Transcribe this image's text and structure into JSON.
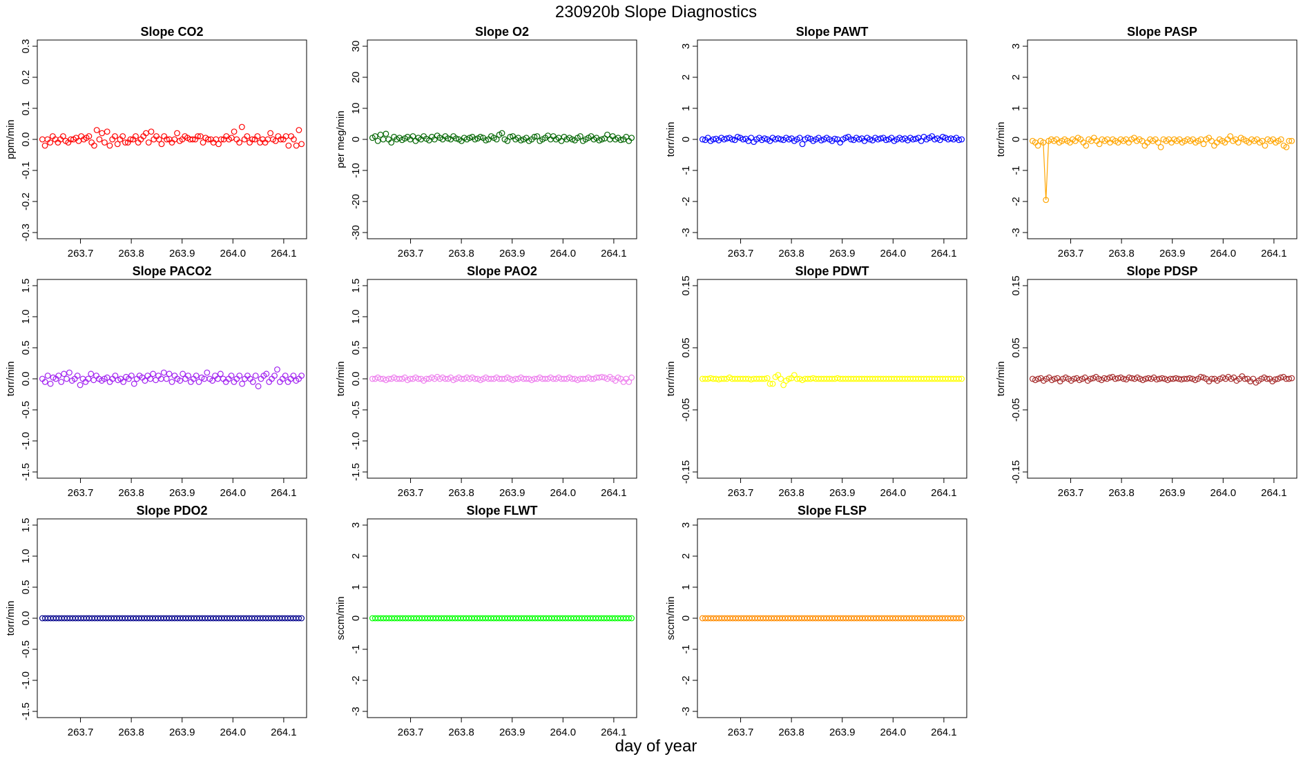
{
  "title": "230920b   Slope Diagnostics",
  "xlabel": "day of year",
  "chart_data": [
    {
      "type": "scatter",
      "title": "Slope CO2",
      "ylabel": "ppm/min",
      "color": "#ff0000",
      "ylim": [
        -0.32,
        0.32
      ],
      "yticks": [
        "-0.3",
        "-0.2",
        "-0.1",
        "0.0",
        "0.1",
        "0.2",
        "0.3"
      ],
      "ytick_values": [
        -0.3,
        -0.2,
        -0.1,
        0,
        0.1,
        0.2,
        0.3
      ],
      "xlim": [
        263.615,
        264.145
      ],
      "xticks": [
        "263.7",
        "263.8",
        "263.9",
        "264.0",
        "264.1"
      ],
      "xtick_values": [
        263.7,
        263.8,
        263.9,
        264.0,
        264.1
      ],
      "x_start": 263.625,
      "x_end": 264.135,
      "y": [
        0.0,
        -0.02,
        0.0,
        -0.01,
        0.01,
        0.0,
        -0.01,
        0.0,
        0.01,
        -0.005,
        -0.01,
        0.0,
        0.0,
        0.005,
        -0.005,
        0.01,
        0.0,
        0.005,
        0.01,
        -0.01,
        -0.02,
        0.03,
        0.0,
        0.02,
        -0.01,
        0.025,
        -0.02,
        0.0,
        0.01,
        -0.015,
        0.0,
        0.01,
        -0.01,
        -0.01,
        0.0,
        0.0,
        0.01,
        -0.01,
        0.0,
        0.01,
        0.02,
        -0.01,
        0.025,
        0.0,
        0.01,
        0.0,
        -0.015,
        0.01,
        0.0,
        0.0,
        -0.01,
        0.0,
        0.02,
        -0.005,
        0.0,
        0.01,
        0.005,
        0.0,
        0.0,
        0.0,
        0.01,
        0.01,
        -0.01,
        0.005,
        0.0,
        0.0,
        -0.01,
        0.0,
        -0.015,
        0.0,
        0.0,
        0.01,
        0.0,
        0.005,
        0.025,
        0.0,
        -0.01,
        0.04,
        0.0,
        0.01,
        -0.01,
        0.0,
        0.0,
        0.01,
        -0.01,
        0.0,
        -0.01,
        0.0,
        0.02,
        0.0,
        -0.005,
        0.01,
        0.0,
        0.0,
        0.01,
        -0.02,
        0.01,
        0.0,
        -0.02,
        0.03,
        -0.015
      ]
    },
    {
      "type": "scatter",
      "title": "Slope O2",
      "ylabel": "per meg/min",
      "color": "#006400",
      "ylim": [
        -32,
        32
      ],
      "yticks": [
        "-30",
        "-20",
        "-10",
        "0",
        "10",
        "20",
        "30"
      ],
      "ytick_values": [
        -30,
        -20,
        -10,
        0,
        10,
        20,
        30
      ],
      "xlim": [
        263.615,
        264.145
      ],
      "xticks": [
        "263.7",
        "263.8",
        "263.9",
        "264.0",
        "264.1"
      ],
      "xtick_values": [
        263.7,
        263.8,
        263.9,
        264.0,
        264.1
      ],
      "x_start": 263.625,
      "x_end": 264.135,
      "y": [
        0.5,
        1.0,
        -0.5,
        1.5,
        0.0,
        1.8,
        0.0,
        -1.0,
        0.8,
        0.0,
        0.5,
        -0.2,
        0.3,
        0.8,
        0.0,
        1.0,
        -0.5,
        0.5,
        0.0,
        1.0,
        0.2,
        -0.3,
        0.8,
        0.0,
        1.2,
        0.5,
        0.0,
        1.0,
        0.3,
        0.0,
        1.0,
        0.3,
        0.0,
        -0.5,
        0.5,
        0.0,
        0.5,
        0.8,
        0.0,
        0.3,
        0.8,
        0.5,
        -0.3,
        0.0,
        1.0,
        0.5,
        0.0,
        1.5,
        2.0,
        0.0,
        -0.5,
        0.8,
        1.0,
        0.0,
        0.5,
        -0.3,
        0.0,
        0.5,
        -0.5,
        0.0,
        0.8,
        1.0,
        -0.5,
        0.0,
        0.5,
        1.2,
        0.0,
        1.0,
        0.0,
        0.5,
        -0.5,
        0.8,
        0.0,
        0.5,
        0.0,
        -0.3,
        0.5,
        1.0,
        -0.5,
        0.0,
        0.5,
        1.0,
        0.0,
        0.5,
        -0.3,
        0.0,
        0.3,
        1.5,
        0.0,
        1.0,
        0.0,
        0.5,
        -0.2,
        0.0,
        0.8,
        -0.5,
        0.5
      ]
    },
    {
      "type": "scatter",
      "title": "Slope PAWT",
      "ylabel": "torr/min",
      "color": "#0000ff",
      "ylim": [
        -3.2,
        3.2
      ],
      "yticks": [
        "-3",
        "-2",
        "-1",
        "0",
        "1",
        "2",
        "3"
      ],
      "ytick_values": [
        -3,
        -2,
        -1,
        0,
        1,
        2,
        3
      ],
      "xlim": [
        263.615,
        264.145
      ],
      "xticks": [
        "263.7",
        "263.8",
        "263.9",
        "264.0",
        "264.1"
      ],
      "xtick_values": [
        263.7,
        263.8,
        263.9,
        264.0,
        264.1
      ],
      "x_start": 263.625,
      "x_end": 264.135,
      "y": [
        0.0,
        -0.02,
        0.05,
        -0.05,
        0.0,
        0.02,
        -0.03,
        0.05,
        0.0,
        0.03,
        0.05,
        0.0,
        -0.02,
        0.08,
        0.05,
        0.0,
        0.02,
        -0.05,
        0.05,
        -0.08,
        0.0,
        0.05,
        -0.02,
        0.03,
        0.0,
        -0.05,
        0.05,
        0.0,
        0.03,
        0.0,
        -0.02,
        0.05,
        0.0,
        0.03,
        -0.05,
        0.0,
        0.05,
        -0.15,
        0.0,
        0.05,
        0.02,
        -0.05,
        0.0,
        0.05,
        -0.03,
        0.0,
        0.05,
        0.0,
        -0.05,
        0.02,
        0.0,
        -0.1,
        0.0,
        0.05,
        0.08,
        0.0,
        -0.02,
        0.05,
        0.0,
        0.03,
        -0.05,
        0.05,
        0.0,
        -0.03,
        0.05,
        0.0,
        0.03,
        0.05,
        -0.02,
        0.0,
        0.05,
        -0.05,
        0.0,
        0.05,
        0.0,
        0.03,
        -0.03,
        0.05,
        0.0,
        0.02,
        0.05,
        -0.05,
        0.08,
        0.0,
        0.05,
        0.1,
        0.0,
        0.03,
        -0.02,
        0.08,
        0.05,
        0.0,
        0.03,
        0.0,
        0.05,
        -0.02,
        0.0
      ]
    },
    {
      "type": "scatter",
      "title": "Slope PASP",
      "ylabel": "torr/min",
      "color": "#ffa500",
      "ylim": [
        -3.2,
        3.2
      ],
      "yticks": [
        "-3",
        "-2",
        "-1",
        "0",
        "1",
        "2",
        "3"
      ],
      "ytick_values": [
        -3,
        -2,
        -1,
        0,
        1,
        2,
        3
      ],
      "xlim": [
        263.615,
        264.145
      ],
      "xticks": [
        "263.7",
        "263.8",
        "263.9",
        "264.0",
        "264.1"
      ],
      "xtick_values": [
        263.7,
        263.8,
        263.9,
        264.0,
        264.1
      ],
      "x_start": 263.625,
      "x_end": 264.135,
      "connected_outlier": true,
      "y": [
        -0.05,
        -0.1,
        -0.2,
        -0.05,
        -0.1,
        -1.95,
        -0.05,
        0.0,
        -0.05,
        0.0,
        -0.1,
        -0.05,
        0.0,
        -0.05,
        -0.1,
        0.0,
        -0.05,
        0.05,
        0.0,
        -0.1,
        -0.2,
        0.0,
        -0.05,
        0.05,
        -0.05,
        -0.15,
        0.0,
        -0.05,
        0.0,
        -0.1,
        0.0,
        -0.05,
        -0.1,
        0.0,
        -0.05,
        0.0,
        -0.1,
        0.0,
        0.05,
        -0.05,
        0.0,
        -0.05,
        -0.2,
        -0.1,
        0.0,
        -0.05,
        0.0,
        -0.1,
        -0.25,
        0.0,
        -0.05,
        0.0,
        -0.1,
        0.0,
        -0.05,
        0.0,
        -0.1,
        -0.05,
        0.0,
        -0.05,
        0.0,
        -0.1,
        -0.05,
        0.0,
        -0.15,
        0.0,
        0.05,
        -0.05,
        -0.2,
        -0.1,
        0.0,
        -0.05,
        -0.1,
        0.0,
        0.1,
        -0.05,
        0.0,
        -0.1,
        0.05,
        0.0,
        -0.05,
        -0.1,
        0.0,
        -0.05,
        0.0,
        -0.1,
        -0.05,
        -0.2,
        0.0,
        -0.05,
        0.0,
        -0.1,
        -0.05,
        0.0,
        -0.2,
        -0.25,
        -0.05,
        -0.05
      ]
    },
    {
      "type": "scatter",
      "title": "Slope PACO2",
      "ylabel": "torr/min",
      "color": "#a020f0",
      "ylim": [
        -1.6,
        1.6
      ],
      "yticks": [
        "-1.5",
        "-1.0",
        "-0.5",
        "0.0",
        "0.5",
        "1.0",
        "1.5"
      ],
      "ytick_values": [
        -1.5,
        -1.0,
        -0.5,
        0,
        0.5,
        1.0,
        1.5
      ],
      "xlim": [
        263.615,
        264.145
      ],
      "xticks": [
        "263.7",
        "263.8",
        "263.9",
        "264.0",
        "264.1"
      ],
      "xtick_values": [
        263.7,
        263.8,
        263.9,
        264.0,
        264.1
      ],
      "x_start": 263.625,
      "x_end": 264.135,
      "y": [
        0.0,
        -0.05,
        0.05,
        -0.08,
        0.02,
        0.0,
        0.05,
        -0.05,
        0.08,
        0.0,
        0.1,
        -0.03,
        0.0,
        0.05,
        -0.1,
        0.0,
        -0.05,
        0.0,
        0.08,
        -0.02,
        0.05,
        0.0,
        -0.03,
        0.0,
        0.02,
        -0.05,
        0.0,
        0.05,
        -0.02,
        0.0,
        -0.05,
        0.03,
        0.0,
        0.05,
        -0.08,
        0.0,
        0.05,
        0.02,
        -0.03,
        0.05,
        0.0,
        0.08,
        -0.02,
        0.05,
        0.0,
        0.1,
        0.0,
        0.08,
        -0.05,
        0.05,
        0.0,
        -0.03,
        0.08,
        0.0,
        0.05,
        -0.05,
        0.0,
        0.05,
        -0.05,
        0.02,
        0.0,
        0.1,
        0.0,
        -0.03,
        0.05,
        0.0,
        0.08,
        0.0,
        -0.05,
        0.0,
        0.05,
        -0.05,
        0.0,
        0.05,
        -0.08,
        0.0,
        0.05,
        0.0,
        -0.05,
        0.05,
        -0.12,
        0.0,
        0.05,
        0.08,
        -0.05,
        0.0,
        0.05,
        0.15,
        -0.05,
        0.0,
        0.05,
        -0.05,
        0.0,
        0.05,
        -0.03,
        0.0,
        0.05
      ]
    },
    {
      "type": "scatter",
      "title": "Slope PAO2",
      "ylabel": "torr/min",
      "color": "#ee82ee",
      "ylim": [
        -1.6,
        1.6
      ],
      "yticks": [
        "-1.5",
        "-1.0",
        "-0.5",
        "0.0",
        "0.5",
        "1.0",
        "1.5"
      ],
      "ytick_values": [
        -1.5,
        -1.0,
        -0.5,
        0,
        0.5,
        1.0,
        1.5
      ],
      "xlim": [
        263.615,
        264.145
      ],
      "xticks": [
        "263.7",
        "263.8",
        "263.9",
        "264.0",
        "264.1"
      ],
      "xtick_values": [
        263.7,
        263.8,
        263.9,
        264.0,
        264.1
      ],
      "x_start": 263.625,
      "x_end": 264.135,
      "y": [
        0.0,
        0.0,
        0.02,
        0.0,
        0.0,
        -0.02,
        0.0,
        0.0,
        0.02,
        0.0,
        0.0,
        0.0,
        0.02,
        -0.02,
        0.0,
        0.0,
        0.02,
        0.0,
        0.0,
        -0.03,
        0.0,
        0.0,
        0.02,
        0.0,
        0.03,
        0.0,
        0.02,
        0.0,
        0.0,
        0.02,
        -0.02,
        0.0,
        0.02,
        0.0,
        0.0,
        0.02,
        0.0,
        0.02,
        0.0,
        0.0,
        -0.02,
        0.0,
        0.02,
        0.0,
        0.0,
        0.0,
        0.02,
        0.0,
        0.0,
        0.0,
        0.02,
        0.0,
        -0.02,
        0.0,
        0.0,
        0.02,
        0.0,
        0.0,
        0.0,
        -0.02,
        0.0,
        0.0,
        0.02,
        0.0,
        0.0,
        0.0,
        0.02,
        0.0,
        0.0,
        0.02,
        0.0,
        0.0,
        0.0,
        0.02,
        0.0,
        0.0,
        -0.02,
        0.0,
        0.0,
        0.0,
        0.02,
        0.0,
        0.0,
        0.02,
        0.02,
        0.03,
        0.02,
        0.0,
        0.03,
        0.0,
        -0.03,
        0.02,
        0.0,
        -0.05,
        0.0,
        -0.05,
        0.02
      ]
    },
    {
      "type": "scatter",
      "title": "Slope PDWT",
      "ylabel": "torr/min",
      "color": "#ffff00",
      "ylim": [
        -0.16,
        0.16
      ],
      "yticks": [
        "-0.15",
        "-0.05",
        "0.05",
        "0.15"
      ],
      "ytick_values": [
        -0.15,
        -0.05,
        0.05,
        0.15
      ],
      "xlim": [
        263.615,
        264.145
      ],
      "xticks": [
        "263.7",
        "263.8",
        "263.9",
        "264.0",
        "264.1"
      ],
      "xtick_values": [
        263.7,
        263.8,
        263.9,
        264.0,
        264.1
      ],
      "x_start": 263.625,
      "x_end": 264.135,
      "y": [
        0.0,
        0.0,
        0.0,
        0.001,
        0.0,
        0.0,
        -0.001,
        0.0,
        0.0,
        0.0,
        0.002,
        0.0,
        0.0,
        0.0,
        0.0,
        0.0,
        0.0,
        0.0,
        -0.001,
        0.0,
        0.0,
        0.0,
        0.0,
        0.0,
        0.001,
        -0.008,
        -0.008,
        0.003,
        0.006,
        0.0,
        -0.01,
        -0.003,
        0.0,
        0.001,
        0.006,
        0.0,
        0.0,
        -0.002,
        0.0,
        0.0,
        0.0,
        0.001,
        0.0,
        0.0,
        0.0,
        0.0,
        0.0,
        0.0,
        0.0,
        0.0,
        0.001,
        0.0,
        0.0,
        0.0,
        0.0,
        0.0,
        0.0,
        0.0,
        0.0,
        0.0,
        0.0,
        0.0,
        0.0,
        0.0,
        0.0,
        0.0,
        0.0,
        0.0,
        0.0,
        0.0,
        0.0,
        0.0,
        0.0,
        0.0,
        0.0,
        0.0,
        0.0,
        0.0,
        0.0,
        0.0,
        0.0,
        0.0,
        0.0,
        0.0,
        0.0,
        0.0,
        0.0,
        0.0,
        0.0,
        0.0,
        0.0,
        0.0,
        0.0,
        0.0,
        0.0,
        0.0,
        0.0
      ]
    },
    {
      "type": "scatter",
      "title": "Slope PDSP",
      "ylabel": "torr/min",
      "color": "#a52a2a",
      "ylim": [
        -0.16,
        0.16
      ],
      "yticks": [
        "-0.15",
        "-0.05",
        "0.05",
        "0.15"
      ],
      "ytick_values": [
        -0.15,
        -0.05,
        0.05,
        0.15
      ],
      "xlim": [
        263.615,
        264.145
      ],
      "xticks": [
        "263.7",
        "263.8",
        "263.9",
        "264.0",
        "264.1"
      ],
      "xtick_values": [
        263.7,
        263.8,
        263.9,
        264.0,
        264.1
      ],
      "x_start": 263.625,
      "x_end": 264.135,
      "y": [
        0.0,
        -0.002,
        0.0,
        0.001,
        -0.003,
        0.0,
        0.002,
        -0.002,
        0.0,
        0.001,
        -0.004,
        0.0,
        0.002,
        0.0,
        -0.003,
        0.0,
        0.001,
        -0.002,
        0.0,
        0.002,
        -0.003,
        0.0,
        0.001,
        0.003,
        0.0,
        -0.002,
        0.001,
        0.0,
        0.002,
        0.003,
        0.0,
        0.001,
        0.002,
        0.0,
        -0.001,
        0.002,
        0.001,
        0.0,
        0.002,
        0.0,
        -0.002,
        0.0,
        0.001,
        0.0,
        0.002,
        -0.001,
        0.0,
        0.001,
        0.0,
        -0.002,
        0.0,
        0.0,
        0.001,
        0.0,
        -0.001,
        0.0,
        0.0,
        0.001,
        0.0,
        -0.002,
        0.0,
        0.003,
        0.002,
        0.0,
        -0.004,
        0.0,
        0.0,
        -0.003,
        0.0,
        0.002,
        0.0,
        0.003,
        0.0,
        0.002,
        -0.003,
        0.0,
        0.004,
        0.0,
        0.0,
        -0.004,
        0.0,
        -0.006,
        -0.003,
        0.0,
        0.002,
        0.0,
        0.0,
        -0.004,
        -0.001,
        0.0,
        0.002,
        0.003,
        0.0,
        0.0,
        0.001
      ]
    },
    {
      "type": "scatter",
      "title": "Slope PDO2",
      "ylabel": "torr/min",
      "color": "#00008b",
      "ylim": [
        -1.6,
        1.6
      ],
      "yticks": [
        "-1.5",
        "-1.0",
        "-0.5",
        "0.0",
        "0.5",
        "1.0",
        "1.5"
      ],
      "ytick_values": [
        -1.5,
        -1.0,
        -0.5,
        0,
        0.5,
        1.0,
        1.5
      ],
      "xlim": [
        263.615,
        264.145
      ],
      "xticks": [
        "263.7",
        "263.8",
        "263.9",
        "264.0",
        "264.1"
      ],
      "xtick_values": [
        263.7,
        263.8,
        263.9,
        264.0,
        264.1
      ],
      "x_start": 263.625,
      "x_end": 264.135,
      "constant": 0.0,
      "n": 95
    },
    {
      "type": "scatter",
      "title": "Slope FLWT",
      "ylabel": "sccm/min",
      "color": "#00ff00",
      "ylim": [
        -3.2,
        3.2
      ],
      "yticks": [
        "-3",
        "-2",
        "-1",
        "0",
        "1",
        "2",
        "3"
      ],
      "ytick_values": [
        -3,
        -2,
        -1,
        0,
        1,
        2,
        3
      ],
      "xlim": [
        263.615,
        264.145
      ],
      "xticks": [
        "263.7",
        "263.8",
        "263.9",
        "264.0",
        "264.1"
      ],
      "xtick_values": [
        263.7,
        263.8,
        263.9,
        264.0,
        264.1
      ],
      "x_start": 263.625,
      "x_end": 264.135,
      "constant": 0.0,
      "n": 95
    },
    {
      "type": "scatter",
      "title": "Slope FLSP",
      "ylabel": "sccm/min",
      "color": "#ff8c00",
      "ylim": [
        -3.2,
        3.2
      ],
      "yticks": [
        "-3",
        "-2",
        "-1",
        "0",
        "1",
        "2",
        "3"
      ],
      "ytick_values": [
        -3,
        -2,
        -1,
        0,
        1,
        2,
        3
      ],
      "xlim": [
        263.615,
        264.145
      ],
      "xticks": [
        "263.7",
        "263.8",
        "263.9",
        "264.0",
        "264.1"
      ],
      "xtick_values": [
        263.7,
        263.8,
        263.9,
        264.0,
        264.1
      ],
      "x_start": 263.625,
      "x_end": 264.135,
      "constant": 0.0,
      "n": 95
    }
  ]
}
